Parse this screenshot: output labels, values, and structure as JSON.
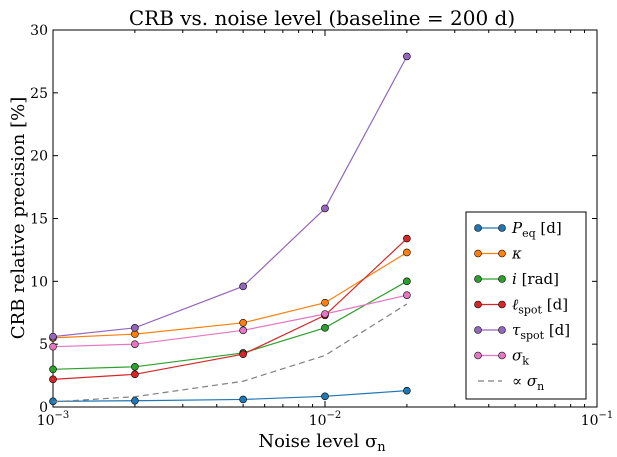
{
  "chart_data": {
    "type": "line",
    "title": "CRB vs. noise level (baseline = 200 d)",
    "xlabel": "Noise level σ",
    "xlabel_sub": "n",
    "ylabel": "CRB relative precision [%]",
    "xscale": "log",
    "xlim": [
      0.001,
      0.1
    ],
    "ylim": [
      0,
      30
    ],
    "x_ticks": [
      {
        "value": 0.001,
        "base": "10",
        "exp": "−3"
      },
      {
        "value": 0.01,
        "base": "10",
        "exp": "−2"
      },
      {
        "value": 0.1,
        "base": "10",
        "exp": "−1"
      }
    ],
    "y_ticks": [
      0,
      5,
      10,
      15,
      20,
      25,
      30
    ],
    "grid": false,
    "legend_position": "lower-right",
    "x": [
      0.001,
      0.002,
      0.005,
      0.01,
      0.02
    ],
    "series": [
      {
        "name": "P",
        "sub": "eq",
        "suffix": " [d]",
        "color": "#1f77b4",
        "marker": "circle",
        "values": [
          0.45,
          0.5,
          0.6,
          0.85,
          1.3
        ]
      },
      {
        "name": "κ",
        "sub": "",
        "suffix": "",
        "color": "#ff7f0e",
        "marker": "circle",
        "values": [
          5.5,
          5.8,
          6.7,
          8.3,
          12.3
        ]
      },
      {
        "name": "i",
        "sub": "",
        "suffix": " [rad]",
        "color": "#2ca02c",
        "marker": "circle",
        "values": [
          3.0,
          3.2,
          4.3,
          6.3,
          10.0
        ]
      },
      {
        "name": "ℓ",
        "sub": "spot",
        "suffix": " [d]",
        "color": "#d62728",
        "marker": "circle",
        "values": [
          2.2,
          2.6,
          4.2,
          7.3,
          13.4
        ]
      },
      {
        "name": "τ",
        "sub": "spot",
        "suffix": " [d]",
        "color": "#9467bd",
        "marker": "circle",
        "values": [
          5.6,
          6.3,
          9.6,
          15.8,
          27.9
        ]
      },
      {
        "name": "σ",
        "sub": "k",
        "suffix": "",
        "color": "#e377c2",
        "marker": "circle",
        "values": [
          4.8,
          5.0,
          6.1,
          7.4,
          8.9
        ]
      },
      {
        "name": "∝ σ",
        "sub": "n",
        "suffix": "",
        "color": "#7f7f7f",
        "marker": "none",
        "dashed": true,
        "values": [
          0.41,
          0.82,
          2.05,
          4.1,
          8.2
        ]
      }
    ]
  }
}
